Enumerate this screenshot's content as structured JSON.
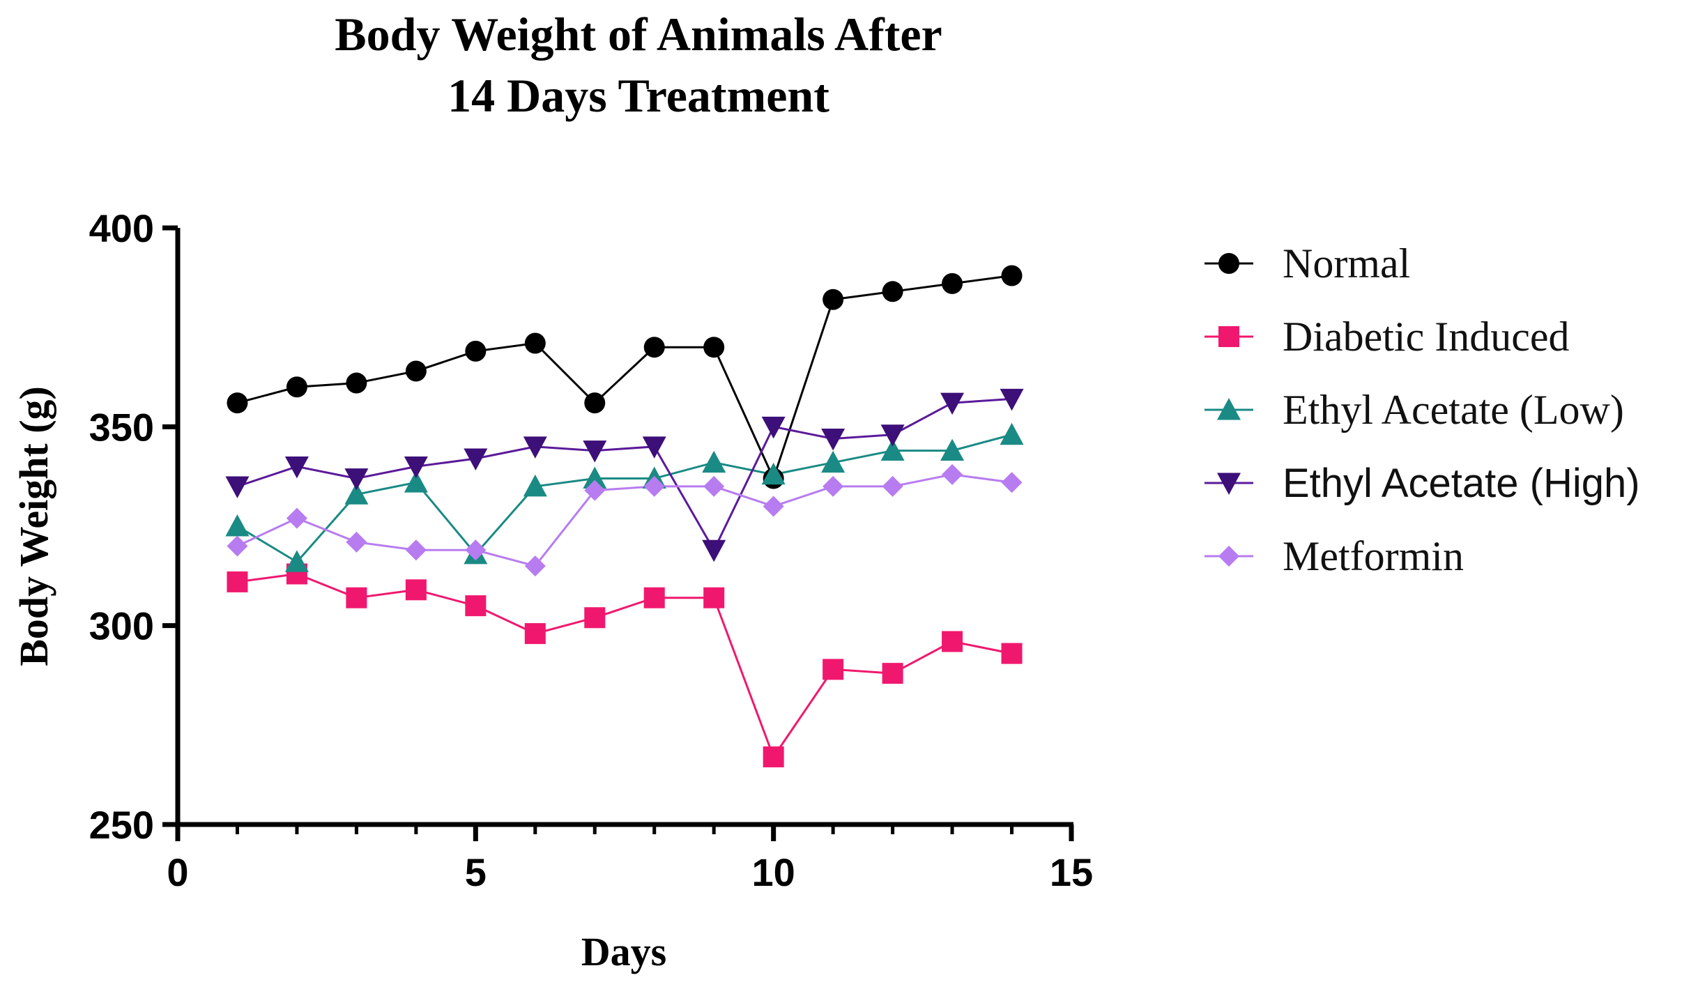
{
  "chart_data": {
    "type": "line",
    "title_lines": [
      "Body Weight of Animals After",
      "14 Days Treatment"
    ],
    "xlabel": "Days",
    "ylabel": "Body Weight (g)",
    "xlim": [
      0,
      15
    ],
    "ylim": [
      250,
      400
    ],
    "xticks": [
      0,
      5,
      10,
      15
    ],
    "yticks": [
      250,
      300,
      350,
      400
    ],
    "x": [
      1,
      2,
      3,
      4,
      5,
      6,
      7,
      8,
      9,
      10,
      11,
      12,
      13,
      14
    ],
    "grid": false,
    "legend_position": "right",
    "series": [
      {
        "name": "Normal",
        "marker": "circle",
        "color": "#000000",
        "line_color": "#000000",
        "values": [
          356,
          360,
          361,
          364,
          369,
          371,
          356,
          370,
          370,
          337,
          382,
          384,
          386,
          388
        ]
      },
      {
        "name": "Diabetic Induced",
        "marker": "square",
        "color": "#f0186e",
        "line_color": "#f0186e",
        "values": [
          311,
          313,
          307,
          309,
          305,
          298,
          302,
          307,
          307,
          267,
          289,
          288,
          296,
          293
        ]
      },
      {
        "name": "Ethyl Acetate (Low)",
        "marker": "triangle-up",
        "color": "#1a8a84",
        "line_color": "#1a8a84",
        "values": [
          325,
          316,
          333,
          336,
          318,
          335,
          337,
          337,
          341,
          338,
          341,
          344,
          344,
          348
        ]
      },
      {
        "name": "Ethyl Acetate (High)",
        "marker": "triangle-down",
        "color": "#3d0f78",
        "line_color": "#5a1a9a",
        "values": [
          335,
          340,
          337,
          340,
          342,
          345,
          344,
          345,
          319,
          350,
          347,
          348,
          356,
          357
        ]
      },
      {
        "name": "Metformin",
        "marker": "diamond",
        "color": "#b77cf0",
        "line_color": "#b77cf0",
        "values": [
          320,
          327,
          321,
          319,
          319,
          315,
          334,
          335,
          335,
          330,
          335,
          335,
          338,
          336
        ]
      }
    ]
  }
}
